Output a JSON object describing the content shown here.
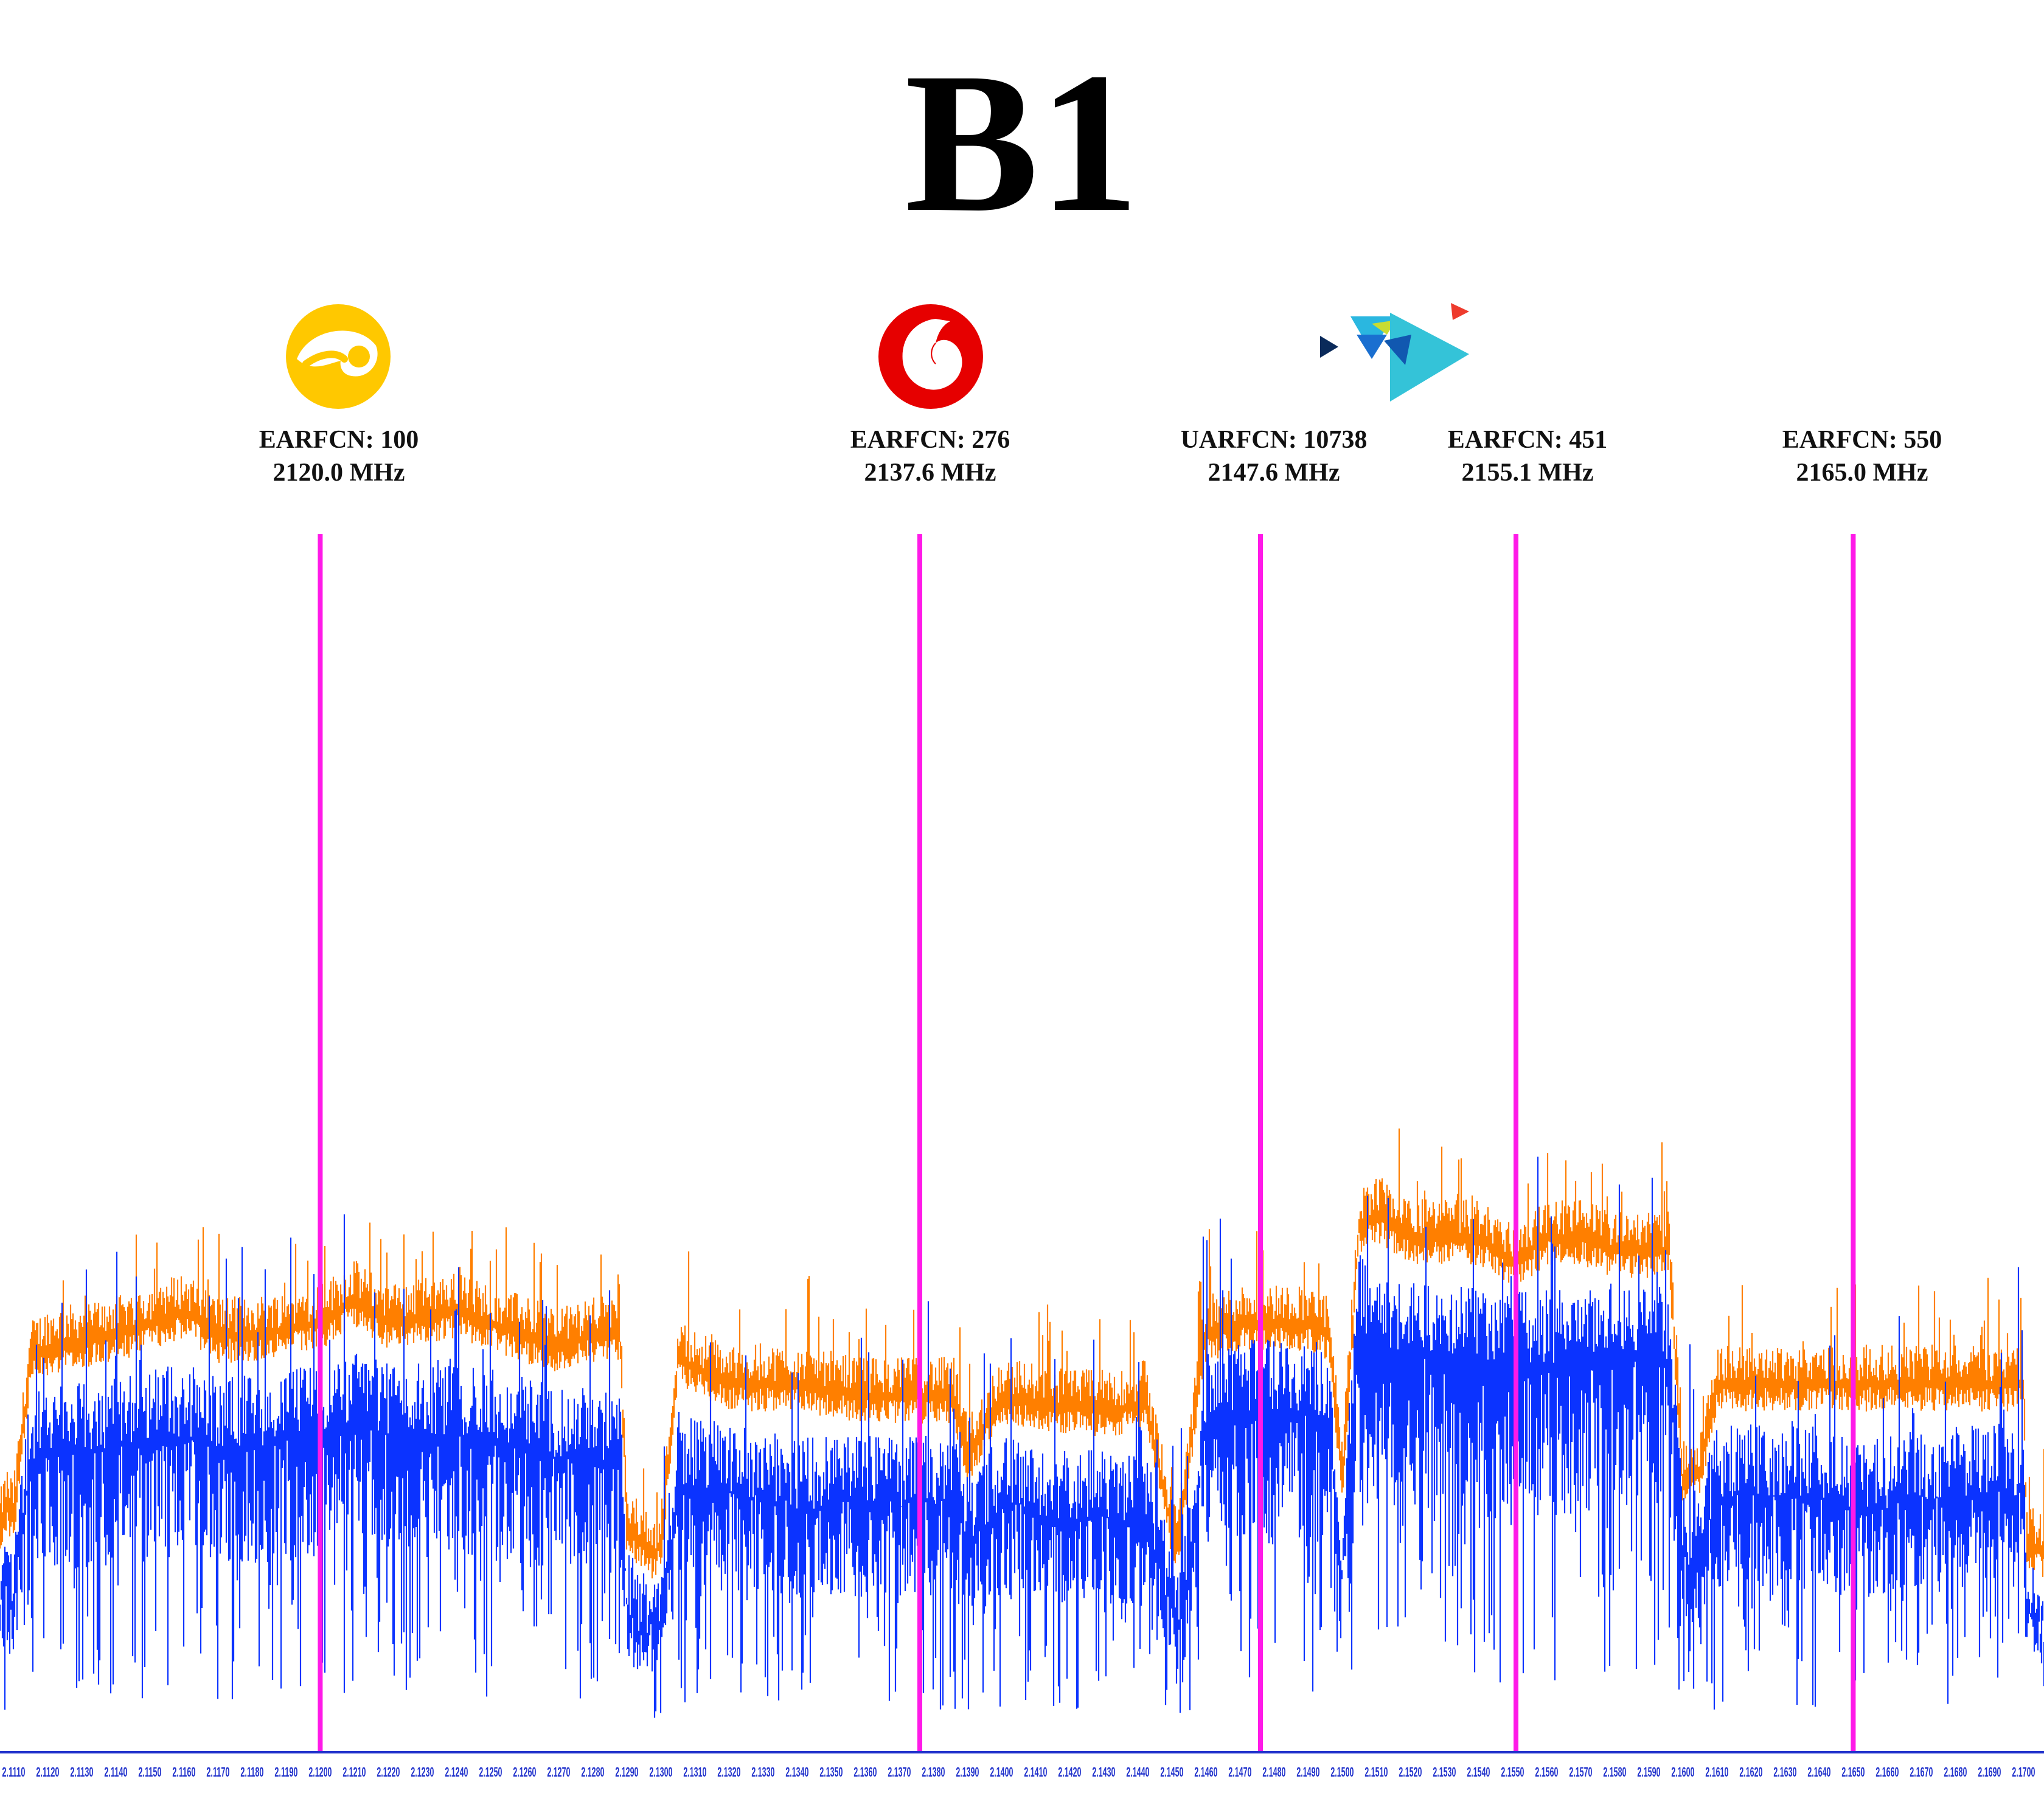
{
  "title": "B1",
  "colors": {
    "max_hold": "#ff7f00",
    "live": "#0b33ff",
    "marker": "#ff1ae8",
    "axis": "#2233cc"
  },
  "markers": [
    {
      "id": "m1",
      "line1": "EARFCN: 100",
      "line2": "2120.0 MHz",
      "freq": 2.12,
      "logo": "turkcell-icon"
    },
    {
      "id": "m2",
      "line1": "EARFCN: 276",
      "line2": "2137.6 MHz",
      "freq": 2.1376,
      "logo": "vodafone-icon"
    },
    {
      "id": "m3",
      "line1": "UARFCN: 10738",
      "line2": "2147.6 MHz",
      "freq": 2.1476,
      "logo": "turk-telekom-icon"
    },
    {
      "id": "m4",
      "line1": "EARFCN: 451",
      "line2": "2155.1 MHz",
      "freq": 2.1551,
      "logo": ""
    },
    {
      "id": "m5",
      "line1": "EARFCN: 550",
      "line2": "2165.0 MHz",
      "freq": 2.165,
      "logo": "turkcell-icon"
    }
  ],
  "chart_data": {
    "type": "area",
    "title": "B1",
    "xlabel": "",
    "ylabel": "",
    "xlim": [
      2.1106,
      2.1706
    ],
    "ylim": [
      0,
      100
    ],
    "grid": false,
    "x_ticks": [
      "2.1110",
      "2.1120",
      "2.1130",
      "2.1140",
      "2.1150",
      "2.1160",
      "2.1170",
      "2.1180",
      "2.1190",
      "2.1200",
      "2.1210",
      "2.1220",
      "2.1230",
      "2.1240",
      "2.1250",
      "2.1260",
      "2.1270",
      "2.1280",
      "2.1290",
      "2.1300",
      "2.1310",
      "2.1320",
      "2.1330",
      "2.1340",
      "2.1350",
      "2.1360",
      "2.1370",
      "2.1380",
      "2.1390",
      "2.1400",
      "2.1410",
      "2.1420",
      "2.1430",
      "2.1440",
      "2.1450",
      "2.1460",
      "2.1470",
      "2.1480",
      "2.1490",
      "2.1500",
      "2.1510",
      "2.1520",
      "2.1530",
      "2.1540",
      "2.1550",
      "2.1560",
      "2.1570",
      "2.1580",
      "2.1590",
      "2.1600",
      "2.1610",
      "2.1620",
      "2.1630",
      "2.1640",
      "2.1650",
      "2.1660",
      "2.1670",
      "2.1680",
      "2.1690",
      "2.1700"
    ],
    "series": [
      {
        "role": "max_hold",
        "color": "#ff7f00",
        "x": [
          2.1106,
          2.1108,
          2.111,
          2.1115,
          2.112,
          2.114,
          2.116,
          2.117,
          2.118,
          2.12,
          2.121,
          2.122,
          2.124,
          2.126,
          2.127,
          2.128,
          2.1288,
          2.129,
          2.1295,
          2.1298,
          2.13,
          2.1305,
          2.132,
          2.134,
          2.136,
          2.1376,
          2.1386,
          2.139,
          2.14,
          2.142,
          2.144,
          2.1442,
          2.145,
          2.1452,
          2.1455,
          2.146,
          2.147,
          2.148,
          2.149,
          2.1496,
          2.15,
          2.1505,
          2.151,
          2.152,
          2.153,
          2.154,
          2.155,
          2.156,
          2.157,
          2.158,
          2.159,
          2.1596,
          2.16,
          2.1605,
          2.161,
          2.162,
          2.164,
          2.165,
          2.166,
          2.168,
          2.17,
          2.1701,
          2.1706
        ],
        "y": [
          20,
          22,
          21,
          34,
          35,
          36,
          38,
          36,
          36,
          37,
          39,
          37,
          38,
          36,
          35,
          36,
          36,
          20,
          19,
          18,
          19,
          34,
          32,
          32,
          31,
          31,
          31,
          26,
          31,
          30,
          30,
          31,
          20,
          19,
          26,
          36,
          37,
          37,
          37,
          36,
          24,
          45,
          46,
          44,
          44,
          44,
          42,
          44,
          44,
          43,
          43,
          43,
          24,
          25,
          32,
          32,
          32,
          32,
          32,
          32,
          32,
          19,
          18
        ]
      },
      {
        "role": "live",
        "color": "#0b33ff",
        "x": [
          2.1106,
          2.1108,
          2.111,
          2.1115,
          2.112,
          2.114,
          2.116,
          2.117,
          2.118,
          2.12,
          2.121,
          2.122,
          2.124,
          2.126,
          2.127,
          2.128,
          2.1288,
          2.129,
          2.1295,
          2.1298,
          2.13,
          2.1305,
          2.132,
          2.134,
          2.136,
          2.1376,
          2.1386,
          2.139,
          2.14,
          2.142,
          2.144,
          2.1442,
          2.145,
          2.1452,
          2.1455,
          2.146,
          2.147,
          2.148,
          2.149,
          2.1496,
          2.15,
          2.1505,
          2.151,
          2.152,
          2.153,
          2.154,
          2.155,
          2.156,
          2.157,
          2.158,
          2.159,
          2.1596,
          2.16,
          2.1605,
          2.161,
          2.162,
          2.164,
          2.165,
          2.166,
          2.168,
          2.17,
          2.1701,
          2.1706
        ],
        "y": [
          14,
          16,
          15,
          27,
          27,
          28,
          29,
          28,
          28,
          29,
          30,
          29,
          29,
          28,
          27,
          27,
          27,
          14,
          12,
          12,
          12,
          25,
          24,
          23,
          23,
          23,
          23,
          20,
          23,
          22,
          22,
          22,
          14,
          12,
          18,
          30,
          31,
          31,
          31,
          30,
          17,
          38,
          36,
          36,
          36,
          35,
          35,
          35,
          35,
          36,
          36,
          35,
          18,
          19,
          24,
          24,
          24,
          23,
          23,
          24,
          24,
          13,
          12
        ]
      }
    ]
  }
}
